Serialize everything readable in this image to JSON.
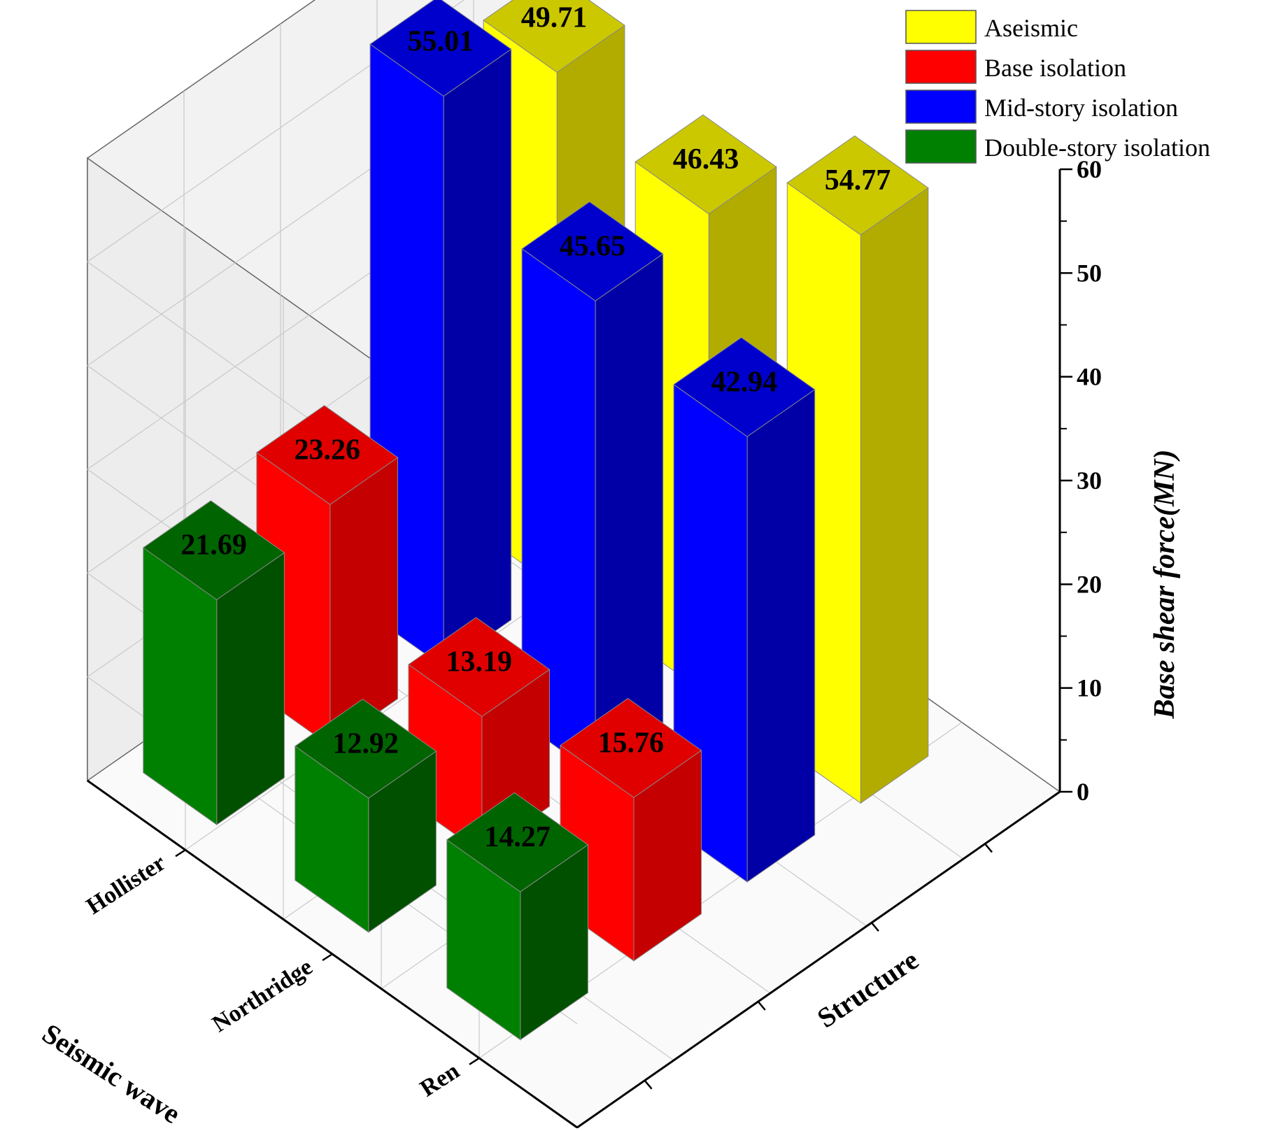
{
  "chart_data": {
    "type": "bar3d",
    "zlabel": "Base shear force(MN)",
    "xlabel": "Seismic wave",
    "ylabel": "Structure",
    "zlim": [
      0,
      60
    ],
    "zticks": [
      "0",
      "10",
      "20",
      "30",
      "40",
      "50",
      "60"
    ],
    "seismic_waves": [
      "Ren",
      "Northridge",
      "Hollister"
    ],
    "series": [
      {
        "name": "Aseismic",
        "values": [
          49.71,
          46.43,
          54.77
        ],
        "value_labels": [
          "49.71",
          "46.43",
          "54.77"
        ]
      },
      {
        "name": "Base isolation",
        "values": [
          23.26,
          13.19,
          15.76
        ],
        "value_labels": [
          "23.26",
          "13.19",
          "15.76"
        ]
      },
      {
        "name": "Mid-story isolation",
        "values": [
          55.01,
          45.65,
          42.94
        ],
        "value_labels": [
          "55.01",
          "45.65",
          "42.94"
        ]
      },
      {
        "name": "Double-story isolation",
        "values": [
          21.69,
          12.92,
          14.27
        ],
        "value_labels": [
          "21.69",
          "12.92",
          "14.27"
        ]
      }
    ],
    "legend_position": "top-right",
    "grid": true
  },
  "colors": {
    "Aseismic": {
      "front": "#FFFF00",
      "side": "#B3AC00",
      "top": "#CCC800"
    },
    "Base isolation": {
      "front": "#FF0000",
      "side": "#C40000",
      "top": "#E00000"
    },
    "Mid-story isolation": {
      "front": "#0000FF",
      "side": "#0000A6",
      "top": "#0000CC"
    },
    "Double-story isolation": {
      "front": "#008000",
      "side": "#005000",
      "top": "#006400"
    }
  }
}
